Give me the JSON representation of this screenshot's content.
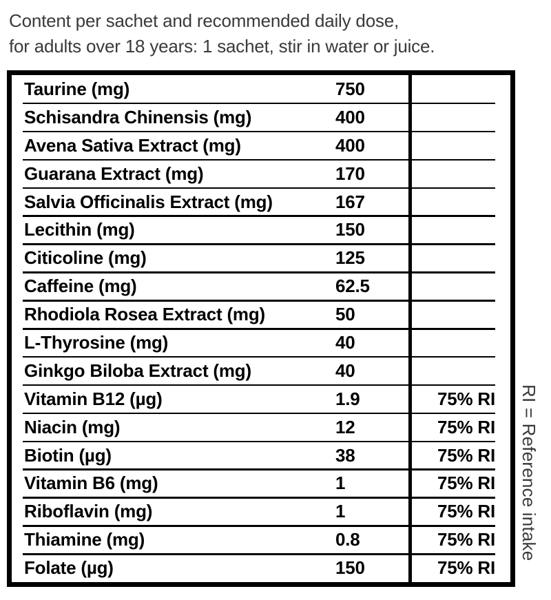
{
  "header": {
    "line1": "Content per sachet and recommended daily dose,",
    "line2": "for adults over 18 years: 1 sachet, stir in water or juice."
  },
  "table": {
    "rows": [
      {
        "label": "Taurine (mg)",
        "value": "750",
        "ri": ""
      },
      {
        "label": "Schisandra Chinensis (mg)",
        "value": "400",
        "ri": ""
      },
      {
        "label": "Avena Sativa Extract (mg)",
        "value": "400",
        "ri": ""
      },
      {
        "label": "Guarana Extract (mg)",
        "value": "170",
        "ri": ""
      },
      {
        "label": "Salvia Officinalis Extract (mg)",
        "value": "167",
        "ri": ""
      },
      {
        "label": "Lecithin (mg)",
        "value": "150",
        "ri": ""
      },
      {
        "label": "Citicoline (mg)",
        "value": "125",
        "ri": ""
      },
      {
        "label": "Caffeine (mg)",
        "value": "62.5",
        "ri": ""
      },
      {
        "label": "Rhodiola Rosea Extract (mg)",
        "value": "50",
        "ri": ""
      },
      {
        "label": "L-Thyrosine (mg)",
        "value": "40",
        "ri": ""
      },
      {
        "label": "Ginkgo Biloba Extract (mg)",
        "value": "40",
        "ri": ""
      },
      {
        "label": "Vitamin B12 (µg)",
        "value": "1.9",
        "ri": "75% RI"
      },
      {
        "label": "Niacin (mg)",
        "value": "12",
        "ri": "75% RI"
      },
      {
        "label": "Biotin (µg)",
        "value": "38",
        "ri": "75% RI"
      },
      {
        "label": "Vitamin B6 (mg)",
        "value": "1",
        "ri": "75% RI"
      },
      {
        "label": "Riboflavin (mg)",
        "value": "1",
        "ri": "75% RI"
      },
      {
        "label": "Thiamine (mg)",
        "value": "0.8",
        "ri": "75% RI"
      },
      {
        "label": "Folate (µg)",
        "value": "150",
        "ri": "75% RI"
      }
    ]
  },
  "sidenote": {
    "text": "RI = Reference intake"
  },
  "colors": {
    "background": "#ffffff",
    "table_border": "#000000",
    "table_text": "#000000",
    "header_text": "#3a3a3a",
    "note_text": "#3a3a3a"
  }
}
